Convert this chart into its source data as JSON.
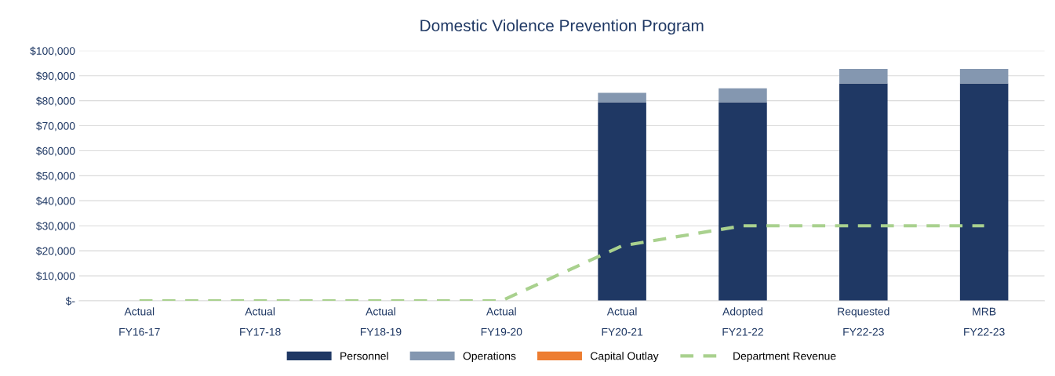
{
  "chart_data": {
    "type": "bar",
    "title": "Domestic Violence Prevention Program",
    "stacked": true,
    "categories": [
      "Actual\nFY16-17",
      "Actual\nFY17-18",
      "Actual\nFY18-19",
      "Actual\nFY19-20",
      "Actual\nFY20-21",
      "Adopted\nFY21-22",
      "Requested\nFY22-23",
      "MRB\nFY22-23"
    ],
    "series": [
      {
        "name": "Personnel",
        "color": "#1f3864",
        "values": [
          0,
          0,
          0,
          0,
          79400,
          79400,
          86900,
          86900
        ]
      },
      {
        "name": "Operations",
        "color": "#8497b0",
        "values": [
          0,
          0,
          0,
          0,
          3800,
          5600,
          5800,
          5800
        ]
      },
      {
        "name": "Capital Outlay",
        "color": "#ed7d31",
        "values": [
          0,
          0,
          0,
          0,
          0,
          0,
          0,
          0
        ]
      },
      {
        "name": "Department Revenue",
        "type": "line",
        "color": "#a9d18e",
        "line_style": "dashed",
        "marker": "none",
        "values": [
          0,
          0,
          0,
          0,
          22000,
          30000,
          30000,
          30000
        ]
      }
    ],
    "ylim": [
      0,
      100000
    ],
    "yticks": [
      {
        "value": 0,
        "label": "$-"
      },
      {
        "value": 10000,
        "label": "$10,000"
      },
      {
        "value": 20000,
        "label": "$20,000"
      },
      {
        "value": 30000,
        "label": "$30,000"
      },
      {
        "value": 40000,
        "label": "$40,000"
      },
      {
        "value": 50000,
        "label": "$50,000"
      },
      {
        "value": 60000,
        "label": "$60,000"
      },
      {
        "value": 70000,
        "label": "$70,000"
      },
      {
        "value": 80000,
        "label": "$80,000"
      },
      {
        "value": 90000,
        "label": "$90,000"
      },
      {
        "value": 100000,
        "label": "$100,000"
      }
    ],
    "grid": "y",
    "legend": "bottom"
  }
}
